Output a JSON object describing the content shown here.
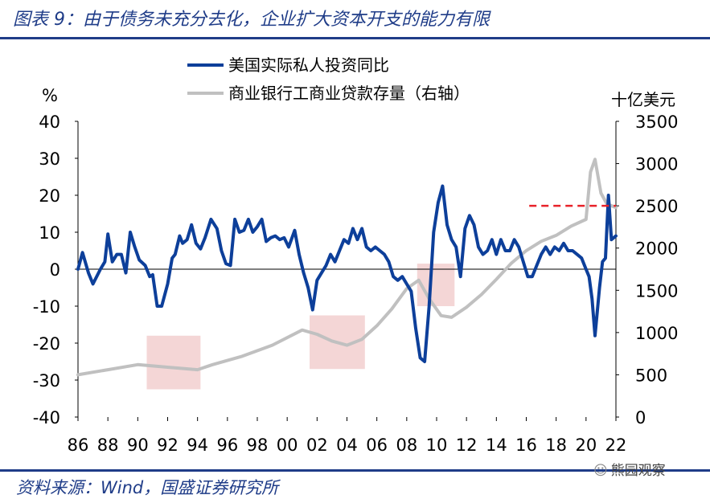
{
  "header": {
    "title": "图表 9：由于债务未充分去化，企业扩大资本开支的能力有限"
  },
  "footer": {
    "source": "资料来源：Wind，国盛证券研究所",
    "watermark": "熊园观察"
  },
  "colors": {
    "blue_series": "#0d3f9a",
    "gray_series": "#c0c0c0",
    "shade": "#f2cfcf",
    "dashed": "#e8232a",
    "brand": "#1f3c88"
  },
  "chart_data": {
    "type": "line",
    "title": "",
    "left_axis": {
      "unit": "%",
      "ylim": [
        -40,
        40
      ],
      "ticks": [
        40,
        30,
        20,
        10,
        0,
        -10,
        -20,
        -30,
        -40
      ]
    },
    "right_axis": {
      "unit": "十亿美元",
      "ylim": [
        0,
        3500
      ],
      "ticks": [
        3500,
        3000,
        2500,
        2000,
        1500,
        1000,
        500,
        0
      ]
    },
    "x_axis": {
      "range": [
        1986,
        2022
      ],
      "ticks": [
        1986,
        1988,
        1990,
        1992,
        1994,
        1996,
        1998,
        2000,
        2002,
        2004,
        2006,
        2008,
        2010,
        2012,
        2014,
        2016,
        2018,
        2020,
        2022
      ],
      "tick_labels": [
        "86",
        "88",
        "90",
        "92",
        "94",
        "96",
        "98",
        "00",
        "02",
        "04",
        "06",
        "08",
        "10",
        "12",
        "14",
        "16",
        "18",
        "20",
        "22"
      ]
    },
    "legend": {
      "position": "top",
      "entries": [
        "美国实际私人投资同比",
        "商业银行工商业贷款存量（右轴）"
      ]
    },
    "series": [
      {
        "name": "美国实际私人投资同比",
        "axis": "left",
        "color": "#0d3f9a",
        "x": [
          1986,
          1986.3,
          1986.7,
          1987,
          1987.5,
          1987.8,
          1988,
          1988.3,
          1988.6,
          1988.9,
          1989.2,
          1989.5,
          1989.8,
          1990.1,
          1990.5,
          1990.8,
          1991,
          1991.3,
          1991.6,
          1992,
          1992.3,
          1992.5,
          1992.8,
          1993,
          1993.3,
          1993.6,
          1993.9,
          1994.2,
          1994.5,
          1994.9,
          1995.3,
          1995.6,
          1995.9,
          1996.2,
          1996.5,
          1996.8,
          1997.1,
          1997.4,
          1997.7,
          1998,
          1998.3,
          1998.6,
          1998.9,
          1999.2,
          1999.5,
          1999.8,
          2000.1,
          2000.5,
          2000.8,
          2001.1,
          2001.4,
          2001.7,
          2002,
          2002.3,
          2002.6,
          2002.9,
          2003.2,
          2003.5,
          2003.8,
          2004.1,
          2004.4,
          2004.7,
          2005,
          2005.3,
          2005.6,
          2005.9,
          2006.2,
          2006.5,
          2006.8,
          2007.1,
          2007.4,
          2007.7,
          2008,
          2008.3,
          2008.6,
          2008.9,
          2009.2,
          2009.5,
          2009.8,
          2010.1,
          2010.4,
          2010.7,
          2011,
          2011.3,
          2011.6,
          2011.9,
          2012.2,
          2012.5,
          2012.8,
          2013.1,
          2013.4,
          2013.7,
          2014,
          2014.3,
          2014.6,
          2014.9,
          2015.2,
          2015.5,
          2015.8,
          2016.1,
          2016.4,
          2016.7,
          2017,
          2017.3,
          2017.6,
          2017.9,
          2018.2,
          2018.5,
          2018.8,
          2019.1,
          2019.4,
          2019.7,
          2020,
          2020.2,
          2020.4,
          2020.6,
          2020.9,
          2021.1,
          2021.3,
          2021.5,
          2021.7,
          2022
        ],
        "y": [
          0,
          4.5,
          -1,
          -4,
          0,
          2,
          9.5,
          2,
          4,
          4,
          -1,
          10,
          6,
          2.5,
          1,
          -2,
          -1.5,
          -10,
          -10,
          -4,
          3,
          4,
          9,
          7,
          8,
          12,
          7,
          5.5,
          8.5,
          13.5,
          11,
          5,
          1.5,
          1,
          13.5,
          10,
          10.5,
          13.5,
          10,
          11.5,
          13.5,
          7.5,
          8.5,
          9,
          8,
          8.5,
          6,
          10.5,
          4,
          -1,
          -5,
          -11,
          -3,
          -1,
          1,
          4,
          2,
          5,
          8,
          7,
          11,
          8,
          11,
          6,
          5,
          6,
          5,
          4,
          2,
          -2,
          -3,
          -2,
          -4,
          -6,
          -16,
          -24,
          -25,
          -10,
          10,
          18,
          22.5,
          12,
          8,
          6,
          -2,
          11,
          14.5,
          12,
          6,
          4,
          5,
          8,
          4,
          8,
          5,
          5,
          8,
          6,
          2,
          -2,
          -2,
          1,
          4,
          6,
          4,
          6,
          5,
          7,
          5,
          5,
          4,
          3,
          0,
          -2,
          -8,
          -18,
          -5,
          2,
          3,
          20,
          8,
          9
        ]
      },
      {
        "name": "商业银行工商业贷款存量（右轴）",
        "axis": "right",
        "color": "#c0c0c0",
        "x": [
          1986,
          1988,
          1990,
          1992,
          1994,
          1995,
          1997,
          1999,
          2001,
          2002,
          2003,
          2004,
          2005,
          2006,
          2007,
          2008,
          2008.8,
          2009.5,
          2010.3,
          2011,
          2012,
          2013,
          2014,
          2015,
          2016,
          2017,
          2018,
          2019,
          2020,
          2020.3,
          2020.6,
          2021,
          2021.4,
          2022
        ],
        "y": [
          500,
          560,
          620,
          590,
          560,
          620,
          720,
          850,
          1030,
          980,
          900,
          850,
          920,
          1080,
          1280,
          1520,
          1620,
          1400,
          1200,
          1180,
          1300,
          1450,
          1630,
          1820,
          1970,
          2080,
          2150,
          2260,
          2340,
          2900,
          3050,
          2650,
          2520,
          2480
        ]
      }
    ],
    "reference_line": {
      "axis": "right",
      "value": 2500,
      "x_range": [
        2016.2,
        2022
      ],
      "style": "dashed"
    },
    "shaded_regions": [
      {
        "x_range": [
          1990.6,
          1994.2
        ],
        "y_range_left": [
          -32.5,
          -18
        ]
      },
      {
        "x_range": [
          2001.5,
          2005.2
        ],
        "y_range_left": [
          -27,
          -12.5
        ]
      },
      {
        "x_range": [
          2008.7,
          2011.2
        ],
        "y_range_left": [
          -10,
          1.5
        ]
      }
    ]
  }
}
